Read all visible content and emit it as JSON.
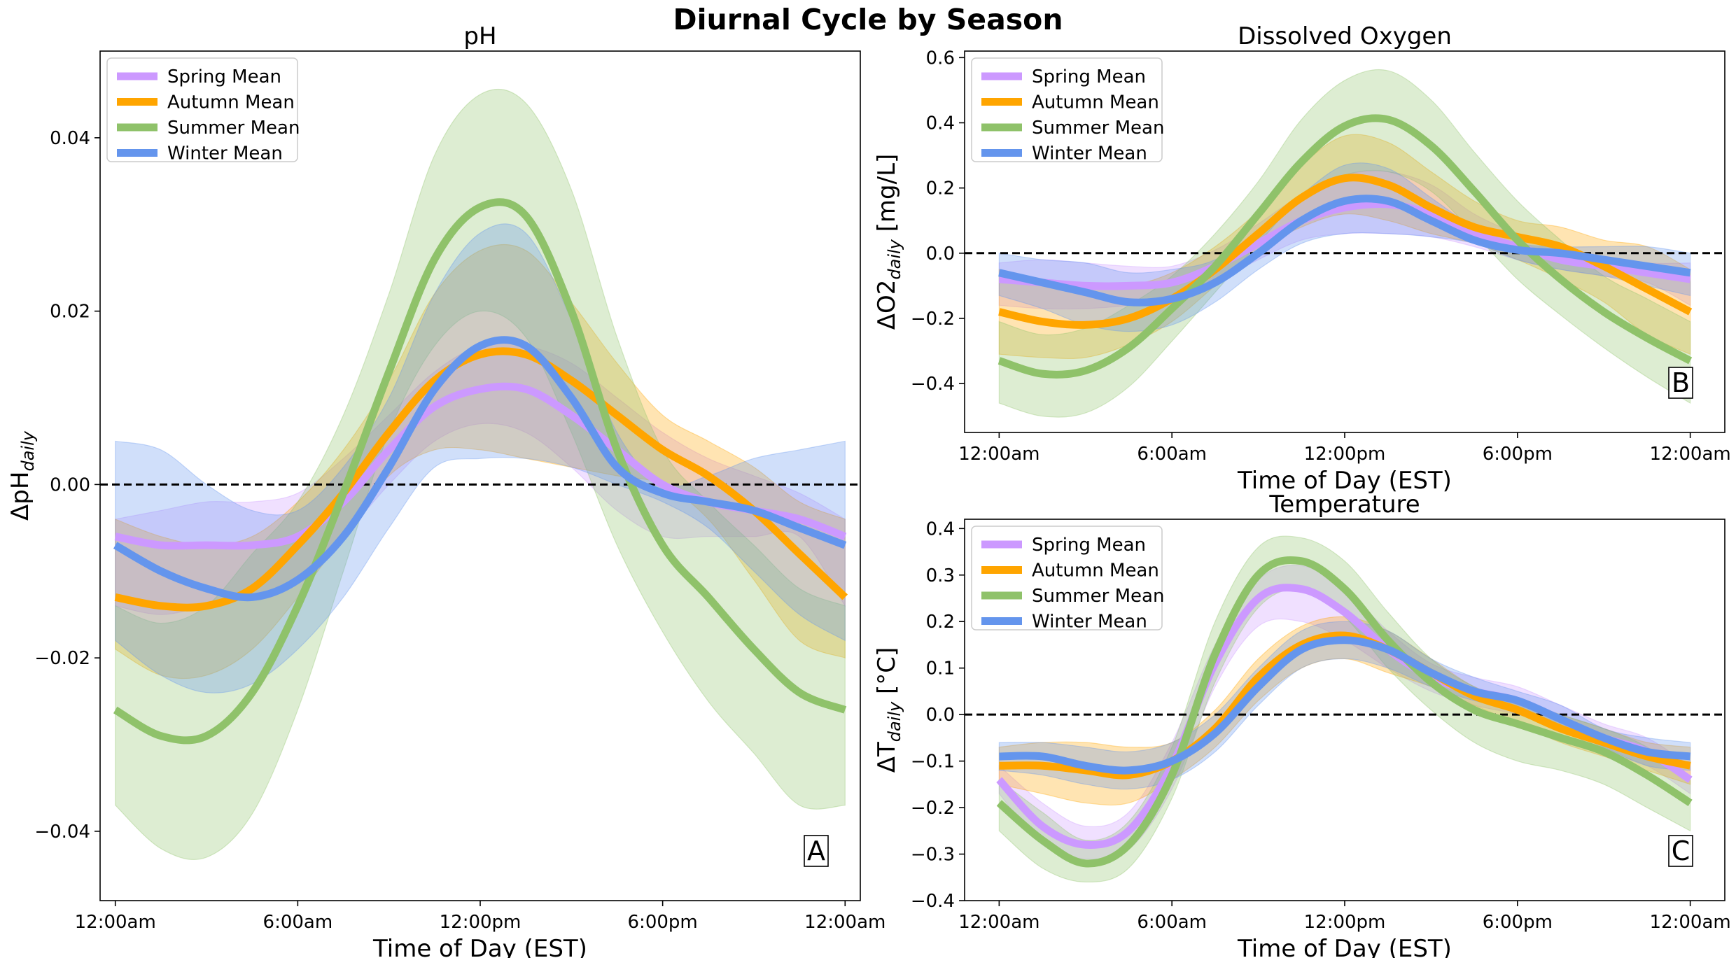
{
  "figure": {
    "title": "Diurnal Cycle by Season"
  },
  "colors": {
    "Spring Mean": "#cc99ff",
    "Autumn Mean": "#ffa500",
    "Summer Mean": "#8fc26a",
    "Winter Mean": "#6495ed"
  },
  "legend_labels": [
    "Spring Mean",
    "Autumn Mean",
    "Summer Mean",
    "Winter Mean"
  ],
  "chart_data": [
    {
      "id": "ph",
      "type": "line",
      "title": "pH",
      "xlabel": "Time of Day (EST)",
      "ylabel_base": "ΔpH",
      "ylabel_sub": "daily",
      "ylabel_unit": "",
      "panel_label": "A",
      "xlim": [
        -0.5,
        24.5
      ],
      "ylim": [
        -0.048,
        0.05
      ],
      "xticks": [
        0,
        6,
        12,
        18,
        24
      ],
      "xtick_labels": [
        "12:00am",
        "6:00am",
        "12:00pm",
        "6:00pm",
        "12:00am"
      ],
      "yticks": [
        -0.04,
        -0.02,
        0.0,
        0.02,
        0.04
      ],
      "ytick_labels": [
        "−0.04",
        "−0.02",
        "0.00",
        "0.02",
        "0.04"
      ],
      "zero_line": true,
      "legend": "top-left",
      "x": [
        0,
        1.5,
        3,
        4.5,
        6,
        7.5,
        9,
        10.5,
        12,
        13.5,
        15,
        16.5,
        18,
        19.5,
        21,
        22.5,
        24
      ],
      "series": [
        {
          "name": "Spring Mean",
          "values": [
            -0.006,
            -0.007,
            -0.007,
            -0.007,
            -0.006,
            -0.002,
            0.004,
            0.009,
            0.011,
            0.011,
            0.008,
            0.004,
            0.0,
            -0.002,
            -0.003,
            -0.004,
            -0.006
          ],
          "lower": [
            -0.014,
            -0.015,
            -0.014,
            -0.013,
            -0.011,
            -0.006,
            0.0,
            0.005,
            0.007,
            0.006,
            0.002,
            -0.003,
            -0.006,
            -0.006,
            -0.006,
            -0.006,
            -0.014
          ],
          "upper": [
            -0.004,
            -0.003,
            -0.002,
            -0.002,
            -0.001,
            0.003,
            0.008,
            0.013,
            0.016,
            0.016,
            0.014,
            0.01,
            0.006,
            0.003,
            0.001,
            -0.001,
            -0.004
          ]
        },
        {
          "name": "Autumn Mean",
          "values": [
            -0.013,
            -0.014,
            -0.014,
            -0.012,
            -0.007,
            -0.001,
            0.006,
            0.012,
            0.015,
            0.015,
            0.012,
            0.008,
            0.004,
            0.001,
            -0.003,
            -0.008,
            -0.013
          ],
          "lower": [
            -0.019,
            -0.022,
            -0.022,
            -0.019,
            -0.013,
            -0.006,
            0.001,
            0.004,
            0.004,
            0.003,
            0.002,
            0.001,
            0.0,
            -0.004,
            -0.011,
            -0.018,
            -0.02
          ],
          "upper": [
            -0.004,
            -0.006,
            -0.007,
            -0.006,
            -0.002,
            0.004,
            0.012,
            0.022,
            0.027,
            0.027,
            0.021,
            0.014,
            0.008,
            0.005,
            0.002,
            -0.002,
            -0.004
          ]
        },
        {
          "name": "Summer Mean",
          "values": [
            -0.026,
            -0.029,
            -0.029,
            -0.024,
            -0.014,
            -0.001,
            0.013,
            0.026,
            0.032,
            0.031,
            0.02,
            0.004,
            -0.007,
            -0.013,
            -0.019,
            -0.024,
            -0.026
          ],
          "lower": [
            -0.037,
            -0.042,
            -0.043,
            -0.038,
            -0.026,
            -0.01,
            0.006,
            0.016,
            0.02,
            0.017,
            0.006,
            -0.007,
            -0.017,
            -0.025,
            -0.031,
            -0.037,
            -0.037
          ],
          "upper": [
            -0.014,
            -0.016,
            -0.014,
            -0.008,
            -0.002,
            0.008,
            0.022,
            0.038,
            0.045,
            0.044,
            0.034,
            0.017,
            0.004,
            -0.002,
            -0.007,
            -0.012,
            -0.014
          ]
        },
        {
          "name": "Winter Mean",
          "values": [
            -0.007,
            -0.01,
            -0.012,
            -0.013,
            -0.011,
            -0.006,
            0.002,
            0.011,
            0.016,
            0.016,
            0.01,
            0.002,
            -0.001,
            -0.002,
            -0.003,
            -0.005,
            -0.007
          ],
          "lower": [
            -0.018,
            -0.022,
            -0.024,
            -0.023,
            -0.019,
            -0.013,
            -0.005,
            0.002,
            0.003,
            0.003,
            0.002,
            0.0,
            -0.002,
            -0.005,
            -0.01,
            -0.015,
            -0.018
          ],
          "upper": [
            0.005,
            0.004,
            0.0,
            -0.003,
            -0.003,
            0.002,
            0.01,
            0.022,
            0.029,
            0.029,
            0.019,
            0.006,
            0.0,
            0.001,
            0.003,
            0.004,
            0.005
          ]
        }
      ]
    },
    {
      "id": "do",
      "type": "line",
      "title": "Dissolved Oxygen",
      "xlabel": "Time of Day (EST)",
      "ylabel_base": "ΔO2",
      "ylabel_sub": "daily",
      "ylabel_unit": " [mg/L]",
      "panel_label": "B",
      "xlim": [
        -1.2,
        25.2
      ],
      "ylim": [
        -0.55,
        0.62
      ],
      "xticks": [
        0,
        6,
        12,
        18,
        24
      ],
      "xtick_labels": [
        "12:00am",
        "6:00am",
        "12:00pm",
        "6:00pm",
        "12:00am"
      ],
      "yticks": [
        -0.4,
        -0.2,
        0.0,
        0.2,
        0.4,
        0.6
      ],
      "ytick_labels": [
        "−0.4",
        "−0.2",
        "0.0",
        "0.2",
        "0.4",
        "0.6"
      ],
      "zero_line": true,
      "legend": "top-left",
      "x": [
        0,
        1.5,
        3,
        4.5,
        6,
        7.5,
        9,
        10.5,
        12,
        13.5,
        15,
        16.5,
        18,
        19.5,
        21,
        22.5,
        24
      ],
      "series": [
        {
          "name": "Spring Mean",
          "values": [
            -0.08,
            -0.09,
            -0.1,
            -0.1,
            -0.09,
            -0.04,
            0.03,
            0.1,
            0.14,
            0.15,
            0.12,
            0.06,
            0.02,
            -0.02,
            -0.04,
            -0.06,
            -0.08
          ],
          "lower": [
            -0.16,
            -0.17,
            -0.17,
            -0.16,
            -0.14,
            -0.09,
            -0.02,
            0.04,
            0.06,
            0.06,
            0.05,
            0.02,
            -0.02,
            -0.05,
            -0.07,
            -0.09,
            -0.16
          ],
          "upper": [
            -0.03,
            -0.02,
            -0.03,
            -0.04,
            -0.04,
            0.01,
            0.09,
            0.18,
            0.24,
            0.25,
            0.21,
            0.12,
            0.06,
            0.02,
            -0.01,
            -0.03,
            -0.03
          ]
        },
        {
          "name": "Autumn Mean",
          "values": [
            -0.18,
            -0.21,
            -0.22,
            -0.2,
            -0.14,
            -0.05,
            0.06,
            0.17,
            0.23,
            0.21,
            0.14,
            0.08,
            0.05,
            0.02,
            -0.04,
            -0.11,
            -0.18
          ],
          "lower": [
            -0.31,
            -0.32,
            -0.32,
            -0.28,
            -0.21,
            -0.1,
            0.01,
            0.08,
            0.12,
            0.1,
            0.06,
            0.03,
            -0.02,
            -0.08,
            -0.15,
            -0.25,
            -0.31
          ],
          "upper": [
            -0.05,
            -0.08,
            -0.1,
            -0.1,
            -0.06,
            0.02,
            0.13,
            0.27,
            0.36,
            0.34,
            0.25,
            0.16,
            0.1,
            0.08,
            0.04,
            0.02,
            -0.05
          ]
        },
        {
          "name": "Summer Mean",
          "values": [
            -0.33,
            -0.37,
            -0.36,
            -0.29,
            -0.17,
            -0.04,
            0.12,
            0.28,
            0.39,
            0.41,
            0.33,
            0.19,
            0.04,
            -0.08,
            -0.18,
            -0.26,
            -0.33
          ],
          "lower": [
            -0.46,
            -0.5,
            -0.49,
            -0.41,
            -0.27,
            -0.12,
            0.03,
            0.17,
            0.24,
            0.25,
            0.19,
            0.06,
            -0.08,
            -0.19,
            -0.29,
            -0.38,
            -0.46
          ],
          "upper": [
            -0.21,
            -0.25,
            -0.23,
            -0.16,
            -0.07,
            0.06,
            0.22,
            0.41,
            0.53,
            0.56,
            0.47,
            0.31,
            0.16,
            0.04,
            -0.07,
            -0.14,
            -0.21
          ]
        },
        {
          "name": "Winter Mean",
          "values": [
            -0.06,
            -0.09,
            -0.12,
            -0.15,
            -0.14,
            -0.09,
            0.0,
            0.1,
            0.16,
            0.16,
            0.1,
            0.04,
            0.01,
            0.0,
            -0.02,
            -0.04,
            -0.06
          ],
          "lower": [
            -0.13,
            -0.17,
            -0.22,
            -0.24,
            -0.22,
            -0.15,
            -0.05,
            0.03,
            0.06,
            0.06,
            0.05,
            0.03,
            -0.02,
            -0.05,
            -0.07,
            -0.1,
            -0.13
          ],
          "upper": [
            0.0,
            -0.02,
            -0.03,
            -0.06,
            -0.05,
            -0.02,
            0.07,
            0.18,
            0.27,
            0.26,
            0.17,
            0.08,
            0.03,
            0.02,
            0.02,
            0.02,
            0.0
          ]
        }
      ]
    },
    {
      "id": "temp",
      "type": "line",
      "title": "Temperature",
      "xlabel": "Time of Day (EST)",
      "ylabel_base": "ΔT",
      "ylabel_sub": "daily",
      "ylabel_unit": " [°C]",
      "panel_label": "C",
      "xlim": [
        -1.2,
        25.2
      ],
      "ylim": [
        -0.4,
        0.42
      ],
      "xticks": [
        0,
        6,
        12,
        18,
        24
      ],
      "xtick_labels": [
        "12:00am",
        "6:00am",
        "12:00pm",
        "6:00pm",
        "12:00am"
      ],
      "yticks": [
        -0.4,
        -0.3,
        -0.2,
        -0.1,
        0.0,
        0.1,
        0.2,
        0.3,
        0.4
      ],
      "ytick_labels": [
        "−0.4",
        "−0.3",
        "−0.2",
        "−0.1",
        "0.0",
        "0.1",
        "0.2",
        "0.3",
        "0.4"
      ],
      "zero_line": true,
      "legend": "top-left",
      "x": [
        0,
        1.5,
        3,
        4.5,
        6,
        7.5,
        9,
        10.5,
        12,
        13.5,
        15,
        16.5,
        18,
        19.5,
        21,
        22.5,
        24
      ],
      "series": [
        {
          "name": "Spring Mean",
          "values": [
            -0.14,
            -0.24,
            -0.28,
            -0.25,
            -0.11,
            0.11,
            0.25,
            0.27,
            0.22,
            0.14,
            0.08,
            0.05,
            0.03,
            -0.01,
            -0.05,
            -0.08,
            -0.14
          ],
          "lower": [
            -0.17,
            -0.28,
            -0.31,
            -0.29,
            -0.16,
            0.06,
            0.19,
            0.2,
            0.16,
            0.1,
            0.05,
            0.02,
            0.0,
            -0.03,
            -0.08,
            -0.11,
            -0.17
          ],
          "upper": [
            -0.11,
            -0.19,
            -0.24,
            -0.21,
            -0.06,
            0.15,
            0.29,
            0.32,
            0.27,
            0.18,
            0.11,
            0.08,
            0.06,
            0.02,
            -0.02,
            -0.05,
            -0.11
          ]
        },
        {
          "name": "Autumn Mean",
          "values": [
            -0.11,
            -0.11,
            -0.12,
            -0.13,
            -0.1,
            -0.03,
            0.08,
            0.15,
            0.17,
            0.14,
            0.09,
            0.04,
            0.01,
            -0.03,
            -0.06,
            -0.09,
            -0.11
          ],
          "lower": [
            -0.15,
            -0.17,
            -0.19,
            -0.19,
            -0.14,
            -0.07,
            0.03,
            0.1,
            0.12,
            0.09,
            0.06,
            0.02,
            -0.02,
            -0.06,
            -0.09,
            -0.12,
            -0.15
          ],
          "upper": [
            -0.07,
            -0.06,
            -0.06,
            -0.07,
            -0.06,
            0.01,
            0.12,
            0.19,
            0.21,
            0.18,
            0.12,
            0.06,
            0.03,
            0.0,
            -0.03,
            -0.06,
            -0.07
          ]
        },
        {
          "name": "Summer Mean",
          "values": [
            -0.19,
            -0.27,
            -0.32,
            -0.28,
            -0.13,
            0.13,
            0.3,
            0.33,
            0.27,
            0.16,
            0.07,
            0.01,
            -0.02,
            -0.05,
            -0.08,
            -0.13,
            -0.19
          ],
          "lower": [
            -0.25,
            -0.33,
            -0.36,
            -0.33,
            -0.18,
            0.07,
            0.23,
            0.27,
            0.21,
            0.1,
            0.01,
            -0.06,
            -0.1,
            -0.12,
            -0.15,
            -0.2,
            -0.25
          ],
          "upper": [
            -0.14,
            -0.21,
            -0.27,
            -0.23,
            -0.07,
            0.2,
            0.36,
            0.38,
            0.33,
            0.22,
            0.12,
            0.06,
            0.03,
            0.0,
            -0.03,
            -0.07,
            -0.14
          ]
        },
        {
          "name": "Winter Mean",
          "values": [
            -0.09,
            -0.09,
            -0.11,
            -0.12,
            -0.1,
            -0.04,
            0.06,
            0.14,
            0.16,
            0.14,
            0.09,
            0.05,
            0.03,
            -0.01,
            -0.05,
            -0.08,
            -0.09
          ],
          "lower": [
            -0.12,
            -0.13,
            -0.15,
            -0.16,
            -0.14,
            -0.08,
            0.02,
            0.1,
            0.12,
            0.1,
            0.06,
            0.03,
            0.01,
            -0.03,
            -0.07,
            -0.11,
            -0.12
          ],
          "upper": [
            -0.06,
            -0.06,
            -0.07,
            -0.08,
            -0.06,
            0.0,
            0.1,
            0.18,
            0.2,
            0.18,
            0.12,
            0.08,
            0.05,
            0.02,
            -0.03,
            -0.05,
            -0.06
          ]
        }
      ]
    }
  ]
}
